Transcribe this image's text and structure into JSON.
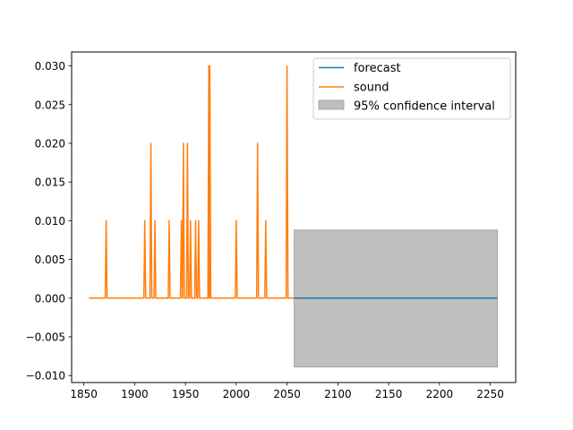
{
  "chart_data": {
    "type": "line",
    "title": "",
    "xlabel": "",
    "ylabel": "",
    "xlim": [
      1838,
      2275
    ],
    "ylim": [
      -0.0109,
      0.0318
    ],
    "x_ticks": [
      1850,
      1900,
      1950,
      2000,
      2050,
      2100,
      2150,
      2200,
      2250
    ],
    "x_tick_labels": [
      "1850",
      "1900",
      "1950",
      "2000",
      "2050",
      "2100",
      "2150",
      "2200",
      "2250"
    ],
    "y_ticks": [
      -0.01,
      -0.005,
      0.0,
      0.005,
      0.01,
      0.015,
      0.02,
      0.025,
      0.03
    ],
    "y_tick_labels": [
      "−0.010",
      "−0.005",
      "0.000",
      "0.005",
      "0.010",
      "0.015",
      "0.020",
      "0.025",
      "0.030"
    ],
    "grid": false,
    "legend_position": "top-right",
    "legend": [
      {
        "label": "forecast",
        "kind": "line",
        "color": "#1f77b4"
      },
      {
        "label": "sound",
        "kind": "line",
        "color": "#ff7f0e"
      },
      {
        "label": "95% confidence interval",
        "kind": "patch",
        "color": "#bfbfbf"
      }
    ],
    "confidence_interval": {
      "x_start": 2057,
      "x_end": 2257,
      "lower": -0.0089,
      "upper": 0.0088,
      "color": "#bfbfbf"
    },
    "series": [
      {
        "name": "sound",
        "color": "#ff7f0e",
        "x_range": [
          1855,
          2057
        ],
        "spikes": [
          {
            "x": 1872,
            "y": 0.01
          },
          {
            "x": 1910,
            "y": 0.01
          },
          {
            "x": 1916,
            "y": 0.02
          },
          {
            "x": 1920,
            "y": 0.01
          },
          {
            "x": 1934,
            "y": 0.01
          },
          {
            "x": 1946,
            "y": 0.01
          },
          {
            "x": 1948,
            "y": 0.02
          },
          {
            "x": 1952,
            "y": 0.02
          },
          {
            "x": 1955,
            "y": 0.01
          },
          {
            "x": 1960,
            "y": 0.01
          },
          {
            "x": 1963,
            "y": 0.01
          },
          {
            "x": 1973,
            "y": 0.03
          },
          {
            "x": 1974,
            "y": 0.03
          },
          {
            "x": 2000,
            "y": 0.01
          },
          {
            "x": 2021,
            "y": 0.02
          },
          {
            "x": 2029,
            "y": 0.01
          },
          {
            "x": 2050,
            "y": 0.03
          }
        ]
      },
      {
        "name": "forecast",
        "color": "#1f77b4",
        "x_range": [
          2057,
          2257
        ],
        "values": [
          0.0,
          0.0
        ]
      }
    ]
  }
}
